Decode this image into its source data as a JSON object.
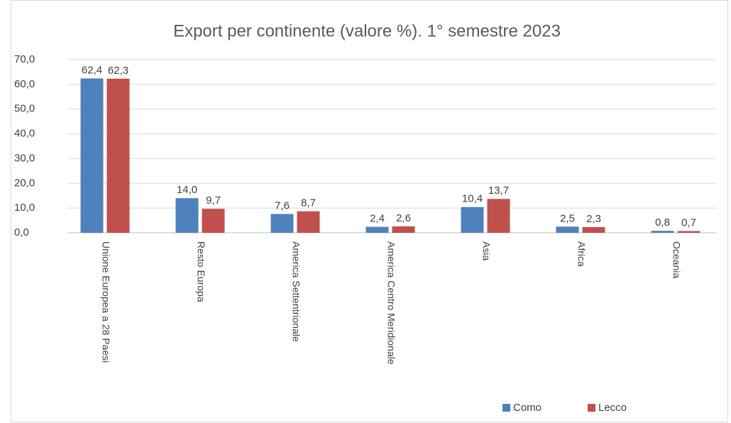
{
  "chart_data": {
    "type": "bar",
    "title": "Export per continente (valore %). 1° semestre 2023",
    "categories": [
      "Unione Europea a 28 Paesi",
      "Resto Europa",
      "America Settentrionale",
      "America Centro Meridionale",
      "Asia",
      "Africa",
      "Oceania"
    ],
    "series": [
      {
        "name": "Como",
        "color": "#4f81bd",
        "values": [
          62.4,
          14.0,
          7.6,
          2.4,
          10.4,
          2.5,
          0.8
        ],
        "value_labels": [
          "62,4",
          "14,0",
          "7,6",
          "2,4",
          "10,4",
          "2,5",
          "0,8"
        ]
      },
      {
        "name": "Lecco",
        "color": "#c0504d",
        "values": [
          62.3,
          9.7,
          8.7,
          2.6,
          13.7,
          2.3,
          0.7
        ],
        "value_labels": [
          "62,3",
          "9,7",
          "8,7",
          "2,6",
          "13,7",
          "2,3",
          "0,7"
        ]
      }
    ],
    "ylim": [
      0,
      70
    ],
    "yticks": [
      {
        "value": 0,
        "label": "0,0"
      },
      {
        "value": 10,
        "label": "10,0"
      },
      {
        "value": 20,
        "label": "20,0"
      },
      {
        "value": 30,
        "label": "30,0"
      },
      {
        "value": 40,
        "label": "40,0"
      },
      {
        "value": 50,
        "label": "50,0"
      },
      {
        "value": 60,
        "label": "60,0"
      },
      {
        "value": 70,
        "label": "70,0"
      }
    ],
    "grid": true
  }
}
